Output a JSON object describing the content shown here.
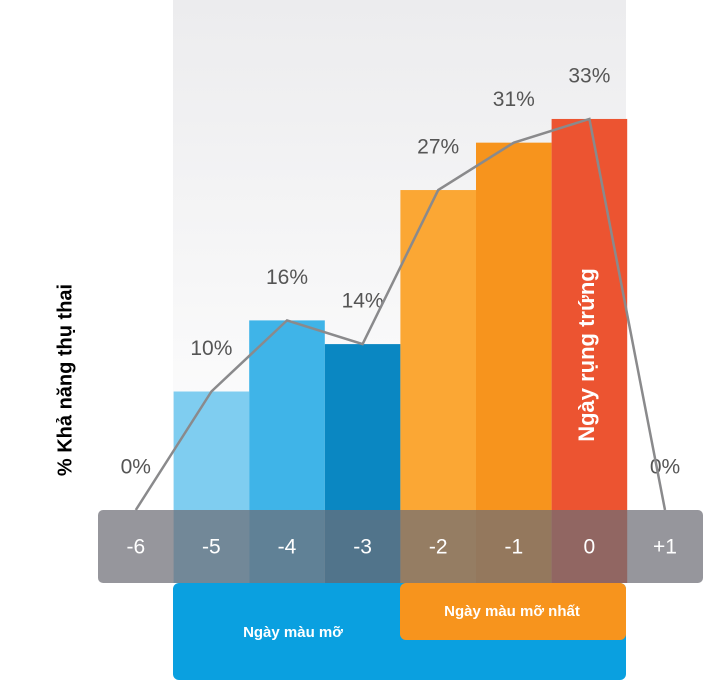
{
  "chart_data": {
    "type": "bar",
    "y_label": "% Khả năng thụ thai",
    "categories": [
      "-6",
      "-5",
      "-4",
      "-3",
      "-2",
      "-1",
      "0",
      "+1"
    ],
    "values": [
      0,
      10,
      16,
      14,
      27,
      31,
      33,
      0
    ],
    "value_labels": [
      "0%",
      "10%",
      "16%",
      "14%",
      "27%",
      "31%",
      "33%",
      "0%"
    ],
    "colors": [
      null,
      "#7fcdf0",
      "#3fb4e8",
      "#0a87c2",
      "#fba734",
      "#f7941d",
      "#ec5431",
      null
    ],
    "line_color": "#8a8a8c",
    "annotations": {
      "ovulation": "Ngày rụng trứng",
      "fertile": "Ngày màu mỡ",
      "most_fertile": "Ngày màu mỡ nhất"
    }
  }
}
